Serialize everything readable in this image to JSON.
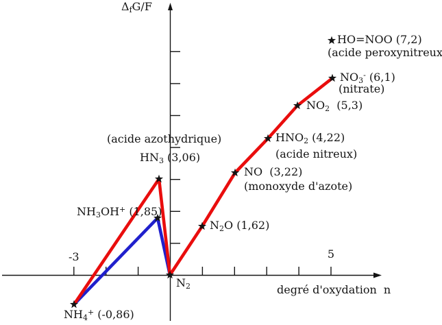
{
  "figure": {
    "background": "#ffffff",
    "ink_color": "#141414",
    "y_axis_title_rich": "Δ_{f}G/F",
    "x_axis_title": "degré d'oxydation  n"
  },
  "chart_data": {
    "type": "line",
    "xlabel": "degré d'oxydation n",
    "ylabel": "ΔfG/F",
    "grid": false,
    "x_tick_labels": [
      {
        "text": "-3",
        "n": -3
      },
      {
        "text": "5",
        "n": 5
      }
    ],
    "x_axis_ticks_n": [
      -3,
      -2,
      -1,
      1,
      2,
      3,
      4,
      5
    ],
    "y_axis_ticks_v": [
      1,
      2,
      3,
      4,
      5,
      6,
      7
    ],
    "x_range": [
      -3.5,
      6.5
    ],
    "y_range": [
      -1.5,
      8.5
    ],
    "points": [
      {
        "id": "nh4-plus",
        "label_rich": "NH_{4}^{+} (-0,86)",
        "value": -0.86,
        "n_plotted": -3
      },
      {
        "id": "nh3oh-plus",
        "label_rich": "NH_{3}OH^{+} (1,85)",
        "value": 1.85,
        "n_plotted": -0.4
      },
      {
        "id": "hn3",
        "label_rich": "HN_{3} (3,06)",
        "sublabel": "(acide azothydrique)",
        "value": 3.06,
        "n_plotted": -0.35
      },
      {
        "id": "n2",
        "label_rich": "N_{2}",
        "value": 0,
        "n_plotted": 0
      },
      {
        "id": "n2o",
        "label_rich": "N_{2}O (1,62)",
        "value": 1.62,
        "n_plotted": 1
      },
      {
        "id": "no",
        "label_rich": "NO  (3,22)",
        "sublabel": "(monoxyde d'azote)",
        "value": 3.22,
        "n_plotted": 2
      },
      {
        "id": "hno2",
        "label_rich": "HNO_{2} (4,22)",
        "sublabel": "(acide nitreux)",
        "value": 4.22,
        "n_plotted": 3
      },
      {
        "id": "no2",
        "label_rich": "NO_{2}  (5,3)",
        "value": 5.3,
        "n_plotted": 4
      },
      {
        "id": "no3-minus",
        "label_rich": "NO_{3}^{-} (6,1)",
        "sublabel": "(nitrate)",
        "value": 6.1,
        "n_plotted": 5
      },
      {
        "id": "ho-noo",
        "label_rich": "HO=NOO (7,2)",
        "sublabel": "(acide peroxynitreux)",
        "value": 7.2,
        "n_plotted": 5
      }
    ],
    "series": [
      {
        "id": "red-curve",
        "color": "#e90d0d",
        "point_ids": [
          "nh4-plus",
          "hn3",
          "n2",
          "n2o",
          "no",
          "hno2",
          "no2",
          "no3-minus"
        ]
      },
      {
        "id": "blue-curve",
        "color": "#2020cc",
        "point_ids": [
          "nh4-plus",
          "nh3oh-plus",
          "n2"
        ]
      }
    ]
  }
}
